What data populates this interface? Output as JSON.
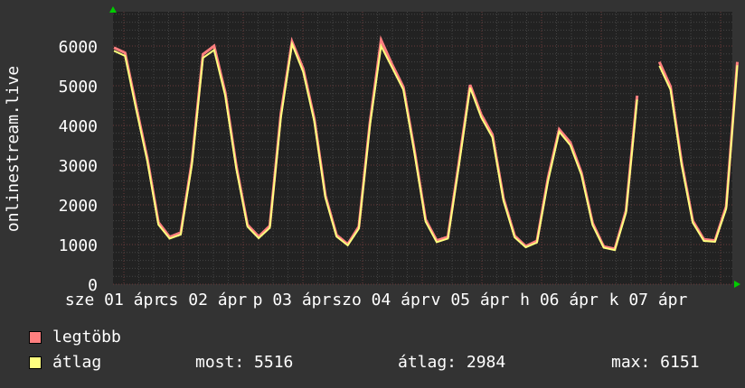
{
  "chart_data": {
    "type": "line",
    "ylabel": "onlinestream.live",
    "ylim": [
      0,
      6000
    ],
    "yticks": [
      "0",
      "1000",
      "2000",
      "3000",
      "4000",
      "5000",
      "6000"
    ],
    "xtick_labels": [
      "sze 01 ápr",
      "cs 02 ápr",
      "p 03 ápr",
      "szo 04 ápr",
      "v 05 ápr",
      "h 06 ápr",
      "k 07 ápr"
    ],
    "x_start": "04-01 12:00",
    "x_step_hours": 3,
    "grid": true,
    "colors": {
      "max": "#ff7f7f",
      "avg": "#ffff7f",
      "background": "#333333",
      "plot": "#222222",
      "arrow": "#00cc00"
    },
    "series": [
      {
        "name": "legtöbb",
        "values": [
          5960,
          5830,
          4480,
          3170,
          1560,
          1190,
          1300,
          3080,
          5790,
          6000,
          4830,
          2970,
          1500,
          1200,
          1470,
          4300,
          6110,
          5430,
          4170,
          2230,
          1240,
          1010,
          1450,
          4080,
          6151,
          5530,
          4970,
          3370,
          1630,
          1100,
          1190,
          3080,
          5020,
          4270,
          3770,
          2160,
          1220,
          960,
          1090,
          2680,
          3900,
          3570,
          2810,
          1540,
          950,
          890,
          1850,
          4750,
          null,
          5600,
          4980,
          3070,
          1600,
          1130,
          1100,
          1960,
          5600
        ]
      },
      {
        "name": "átlag",
        "values": [
          5880,
          5750,
          4400,
          3100,
          1500,
          1150,
          1250,
          3000,
          5700,
          5900,
          4750,
          2900,
          1450,
          1160,
          1420,
          4200,
          6050,
          5350,
          4100,
          2180,
          1200,
          980,
          1400,
          4000,
          6000,
          5450,
          4900,
          3300,
          1580,
          1060,
          1150,
          3000,
          4950,
          4200,
          3700,
          2100,
          1180,
          930,
          1050,
          2600,
          3840,
          3500,
          2750,
          1490,
          920,
          860,
          1800,
          4650,
          null,
          5500,
          4900,
          3000,
          1550,
          1090,
          1070,
          1900,
          5516
        ]
      }
    ]
  },
  "legend": {
    "max_label": "legtöbb",
    "avg_label": "átlag",
    "now": "most: 5516",
    "average": "átlag: 2984",
    "maximum": "max: 6151"
  }
}
